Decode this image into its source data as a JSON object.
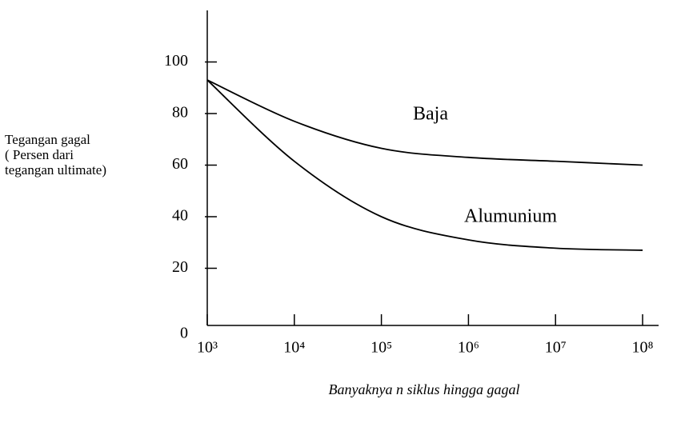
{
  "chart_data": {
    "type": "line",
    "x_label": "Banyaknya n siklus hingga gagal",
    "y_label": [
      "Tegangan gagal",
      "( Persen dari",
      " tegangan ultimate)"
    ],
    "x": [
      1000,
      10000,
      100000,
      1000000,
      10000000,
      100000000
    ],
    "series": [
      {
        "name": "Baja",
        "color": "#000000",
        "values": [
          93,
          77,
          66.5,
          63,
          61.5,
          60
        ]
      },
      {
        "name": "Alumunium",
        "color": "#000000",
        "values": [
          93,
          61.5,
          40,
          31,
          27.8,
          27
        ]
      }
    ],
    "xscale": "log",
    "xlim": [
      1000,
      100000000
    ],
    "xticks": [
      {
        "value": 1000,
        "label": "10³"
      },
      {
        "value": 10000,
        "label": "10⁴"
      },
      {
        "value": 100000,
        "label": "10⁵"
      },
      {
        "value": 1000000,
        "label": "10⁶"
      },
      {
        "value": 10000000,
        "label": "10⁷"
      },
      {
        "value": 100000000,
        "label": "10⁸"
      }
    ],
    "ylim": [
      0,
      120
    ],
    "yticks": [
      0,
      20,
      40,
      60,
      80,
      100
    ],
    "grid": false
  }
}
